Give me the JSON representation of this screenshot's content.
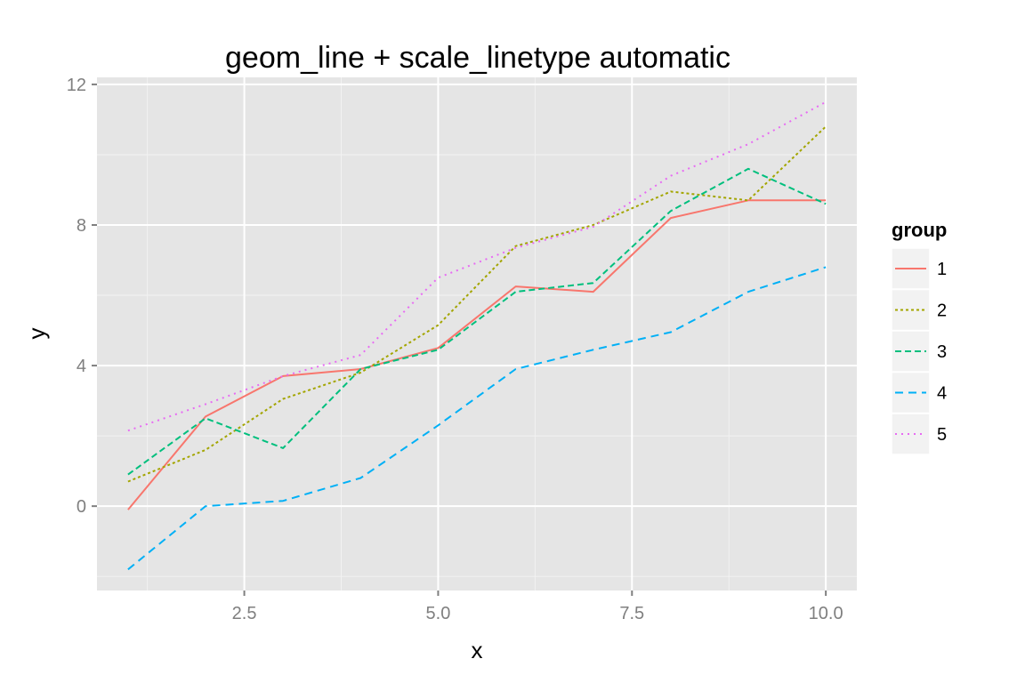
{
  "chart_data": {
    "type": "line",
    "title": "geom_line + scale_linetype automatic",
    "xlabel": "x",
    "ylabel": "y",
    "xlim": [
      0.6,
      10.4
    ],
    "ylim": [
      -2.4,
      12.2
    ],
    "x_ticks": [
      2.5,
      5.0,
      7.5,
      10.0
    ],
    "x_tick_labels": [
      "2.5",
      "5.0",
      "7.5",
      "10.0"
    ],
    "y_ticks": [
      0,
      4,
      8,
      12
    ],
    "y_tick_labels": [
      "0",
      "4",
      "8",
      "12"
    ],
    "grid": true,
    "background": "#e5e5e5",
    "legend": {
      "title": "group",
      "placement": "right"
    },
    "x": [
      1,
      2,
      3,
      4,
      5,
      6,
      7,
      8,
      9,
      10
    ],
    "series": [
      {
        "name": "1",
        "color": "#F8766D",
        "linetype": "solid",
        "values": [
          -0.1,
          2.55,
          3.7,
          3.9,
          4.5,
          6.25,
          6.1,
          8.2,
          8.7,
          8.7
        ]
      },
      {
        "name": "2",
        "color": "#A3A500",
        "linetype": "dotted-short",
        "values": [
          0.7,
          1.6,
          3.05,
          3.8,
          5.15,
          7.4,
          8.0,
          8.95,
          8.7,
          10.8
        ]
      },
      {
        "name": "3",
        "color": "#00BF7D",
        "linetype": "dashed",
        "values": [
          0.9,
          2.5,
          1.65,
          3.9,
          4.45,
          6.1,
          6.35,
          8.4,
          9.6,
          8.6
        ]
      },
      {
        "name": "4",
        "color": "#00B0F6",
        "linetype": "longdash",
        "values": [
          -1.8,
          0.0,
          0.15,
          0.8,
          2.3,
          3.9,
          4.45,
          4.95,
          6.1,
          6.8
        ]
      },
      {
        "name": "5",
        "color": "#E76BF3",
        "linetype": "dotted",
        "values": [
          2.15,
          2.9,
          3.7,
          4.3,
          6.5,
          7.35,
          7.95,
          9.4,
          10.3,
          11.5
        ]
      }
    ]
  }
}
